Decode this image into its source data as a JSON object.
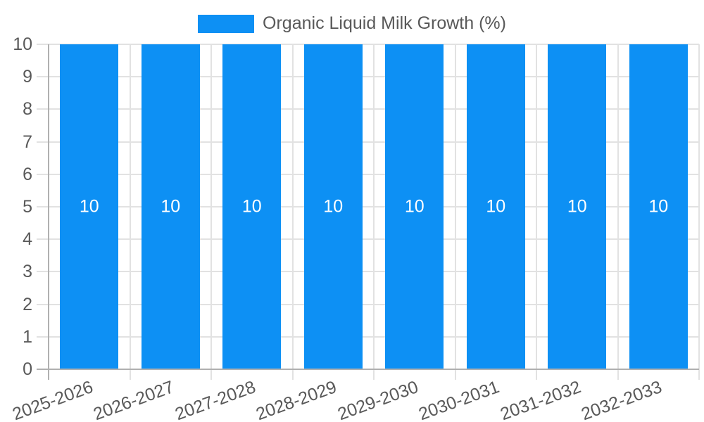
{
  "legend": {
    "label": "Organic Liquid Milk Growth (%)"
  },
  "colors": {
    "bar": "#0d90f4",
    "grid": "#e2e2e2",
    "axis": "#b0b0b0",
    "text": "#595959",
    "value_text": "#ffffff",
    "background": "#ffffff"
  },
  "chart_data": {
    "type": "bar",
    "title": "",
    "xlabel": "",
    "ylabel": "",
    "legend_position": "top-center",
    "grid": true,
    "categories": [
      "2025-2026",
      "2026-2027",
      "2027-2028",
      "2028-2029",
      "2029-2030",
      "2030-2031",
      "2031-2032",
      "2032-2033"
    ],
    "series": [
      {
        "name": "Organic Liquid Milk Growth (%)",
        "values": [
          10,
          10,
          10,
          10,
          10,
          10,
          10,
          10
        ]
      }
    ],
    "value_labels": [
      "10",
      "10",
      "10",
      "10",
      "10",
      "10",
      "10",
      "10"
    ],
    "ylim": [
      0,
      10
    ],
    "yticks": [
      0,
      1,
      2,
      3,
      4,
      5,
      6,
      7,
      8,
      9,
      10
    ]
  }
}
